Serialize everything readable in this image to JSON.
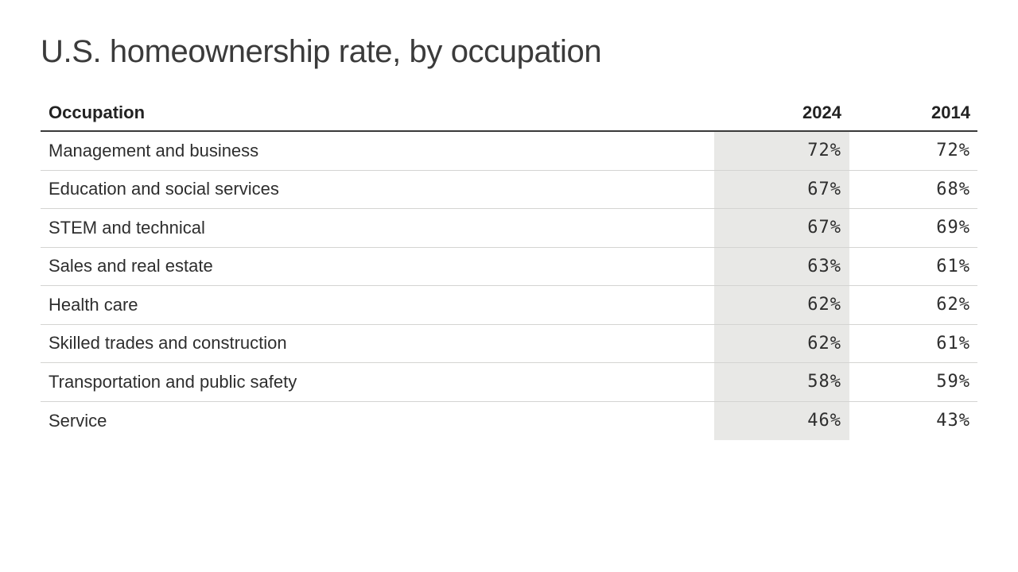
{
  "title": "U.S. homeownership rate, by occupation",
  "table": {
    "headers": {
      "occupation": "Occupation",
      "col2024": "2024",
      "col2014": "2014"
    },
    "rows": [
      {
        "label": "Management and business",
        "y2024": "72%",
        "y2014": "72%"
      },
      {
        "label": "Education and social services",
        "y2024": "67%",
        "y2014": "68%"
      },
      {
        "label": "STEM and technical",
        "y2024": "67%",
        "y2014": "69%"
      },
      {
        "label": "Sales and real estate",
        "y2024": "63%",
        "y2014": "61%"
      },
      {
        "label": "Health care",
        "y2024": "62%",
        "y2014": "62%"
      },
      {
        "label": "Skilled trades and construction",
        "y2024": "62%",
        "y2014": "61%"
      },
      {
        "label": "Transportation and public safety",
        "y2024": "58%",
        "y2014": "59%"
      },
      {
        "label": "Service",
        "y2024": "46%",
        "y2014": "43%"
      }
    ]
  },
  "colors": {
    "highlight_band": "#e8e8e6",
    "header_border": "#3a3a3a",
    "row_border": "#d4d4d2",
    "text": "#2e2e2e",
    "title": "#3b3b3b"
  },
  "chart_data": {
    "type": "table",
    "title": "U.S. homeownership rate, by occupation",
    "categories": [
      "Management and business",
      "Education and social services",
      "STEM and technical",
      "Sales and real estate",
      "Health care",
      "Skilled trades and construction",
      "Transportation and public safety",
      "Service"
    ],
    "series": [
      {
        "name": "2024",
        "values": [
          72,
          67,
          67,
          63,
          62,
          62,
          58,
          46
        ]
      },
      {
        "name": "2014",
        "values": [
          72,
          68,
          69,
          61,
          62,
          61,
          59,
          43
        ]
      }
    ],
    "unit": "%",
    "highlighted_column": "2024",
    "layout": "highlighted column 2024 has light gray background band; right-aligned numeric columns; thin row separators; heavy rule under header"
  }
}
